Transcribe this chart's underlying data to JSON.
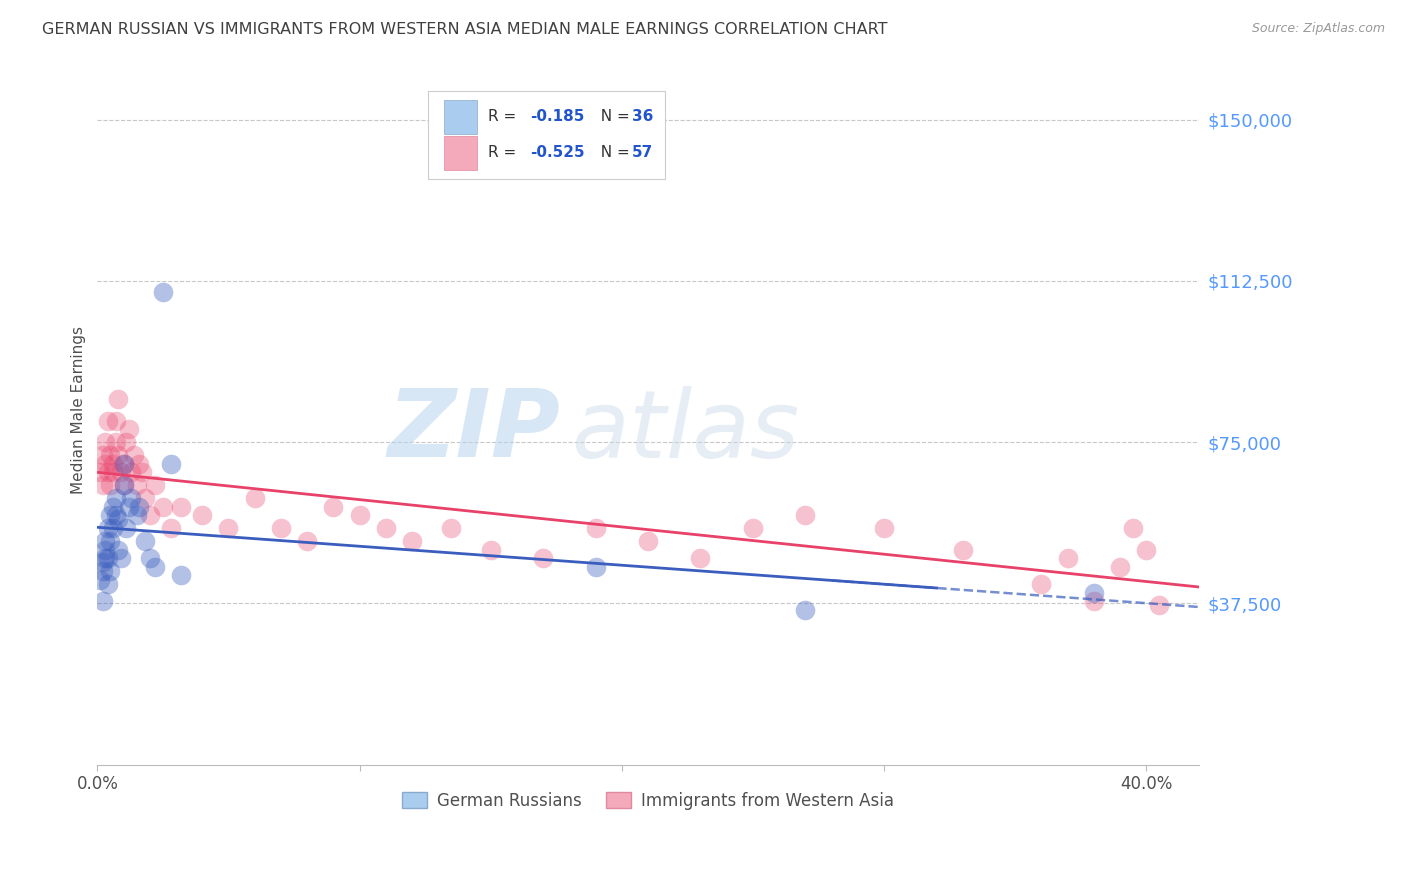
{
  "title": "GERMAN RUSSIAN VS IMMIGRANTS FROM WESTERN ASIA MEDIAN MALE EARNINGS CORRELATION CHART",
  "source": "Source: ZipAtlas.com",
  "ylabel": "Median Male Earnings",
  "y_ticks": [
    0,
    37500,
    75000,
    112500,
    150000
  ],
  "xlim": [
    0.0,
    0.42
  ],
  "ylim": [
    0,
    165000
  ],
  "watermark_zip": "ZIP",
  "watermark_atlas": "atlas",
  "blue_scatter_x": [
    0.001,
    0.002,
    0.002,
    0.002,
    0.003,
    0.003,
    0.003,
    0.004,
    0.004,
    0.004,
    0.005,
    0.005,
    0.005,
    0.006,
    0.006,
    0.007,
    0.007,
    0.008,
    0.008,
    0.009,
    0.01,
    0.01,
    0.011,
    0.012,
    0.013,
    0.015,
    0.016,
    0.018,
    0.02,
    0.022,
    0.025,
    0.028,
    0.032,
    0.19,
    0.27,
    0.38
  ],
  "blue_scatter_y": [
    43000,
    38000,
    45000,
    47000,
    50000,
    48000,
    52000,
    55000,
    42000,
    48000,
    52000,
    58000,
    45000,
    60000,
    55000,
    58000,
    62000,
    57000,
    50000,
    48000,
    65000,
    70000,
    55000,
    60000,
    62000,
    58000,
    60000,
    52000,
    48000,
    46000,
    110000,
    70000,
    44000,
    46000,
    36000,
    40000
  ],
  "pink_scatter_x": [
    0.001,
    0.002,
    0.002,
    0.003,
    0.003,
    0.004,
    0.004,
    0.005,
    0.005,
    0.006,
    0.006,
    0.007,
    0.007,
    0.008,
    0.008,
    0.009,
    0.01,
    0.01,
    0.011,
    0.012,
    0.013,
    0.014,
    0.015,
    0.016,
    0.017,
    0.018,
    0.02,
    0.022,
    0.025,
    0.028,
    0.032,
    0.04,
    0.05,
    0.06,
    0.07,
    0.08,
    0.09,
    0.1,
    0.11,
    0.12,
    0.135,
    0.15,
    0.17,
    0.19,
    0.21,
    0.23,
    0.25,
    0.27,
    0.3,
    0.33,
    0.36,
    0.37,
    0.38,
    0.39,
    0.395,
    0.4,
    0.405
  ],
  "pink_scatter_y": [
    68000,
    72000,
    65000,
    75000,
    70000,
    80000,
    68000,
    72000,
    65000,
    70000,
    68000,
    75000,
    80000,
    72000,
    85000,
    68000,
    70000,
    65000,
    75000,
    78000,
    68000,
    72000,
    65000,
    70000,
    68000,
    62000,
    58000,
    65000,
    60000,
    55000,
    60000,
    58000,
    55000,
    62000,
    55000,
    52000,
    60000,
    58000,
    55000,
    52000,
    55000,
    50000,
    48000,
    55000,
    52000,
    48000,
    55000,
    58000,
    55000,
    50000,
    42000,
    48000,
    38000,
    46000,
    55000,
    50000,
    37000
  ],
  "blue_line_color": "#3a5dbe",
  "pink_line_color": "#e8426a",
  "dot_size": 200,
  "background_color": "#ffffff",
  "grid_color": "#c8c8c8",
  "title_color": "#404040",
  "axis_label_color": "#505050",
  "right_axis_color": "#5599ff",
  "source_color": "#999999",
  "legend_blue_color": "#aaccee",
  "legend_pink_color": "#f4aabb",
  "legend_blue_edge": "#88aacc",
  "legend_pink_edge": "#e088a0"
}
